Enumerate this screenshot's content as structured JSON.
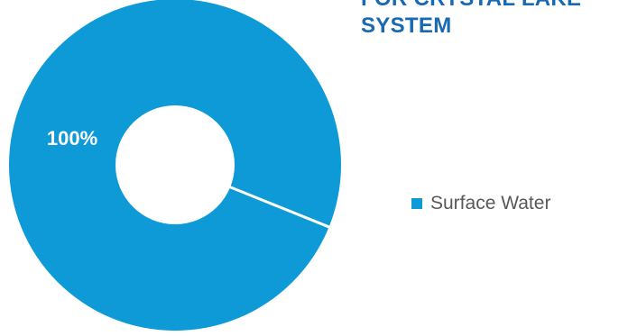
{
  "chart_data": {
    "type": "pie",
    "donut": true,
    "title": "FOR CRYSTAL LAKE SYSTEM",
    "title_lines": [
      "FOR CRYSTAL LAKE",
      "SYSTEM"
    ],
    "categories": [
      "Surface Water"
    ],
    "values": [
      100
    ],
    "data_labels": [
      "100%"
    ],
    "legend_position": "right",
    "colors": {
      "slice": "#0e9ad7",
      "title": "#1769b3",
      "label": "#ffffff",
      "legend_text": "#595959",
      "separator": "#ffffff"
    }
  }
}
